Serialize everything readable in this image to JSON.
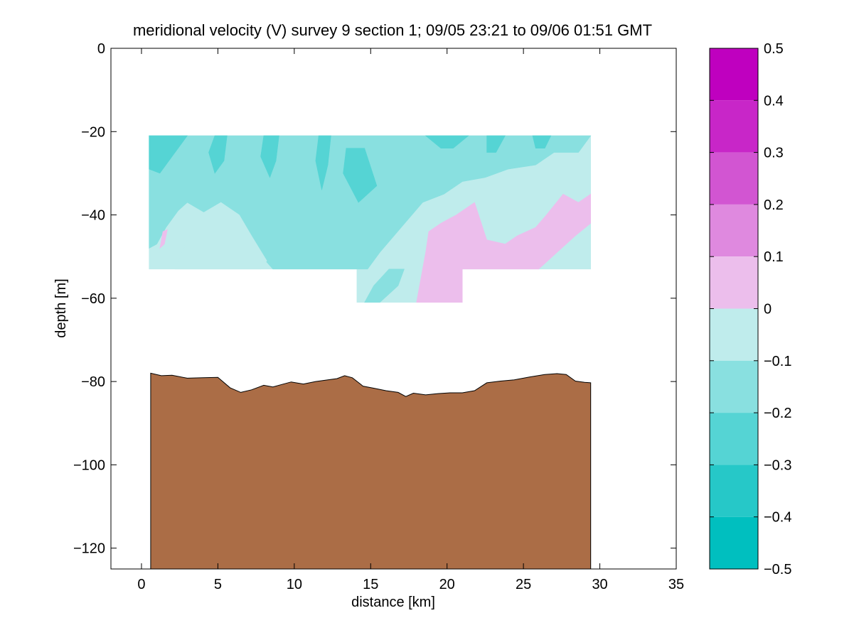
{
  "figure": {
    "title": "meridional velocity (V) survey 9 section 1; 09/05 23:21 to 09/06 01:51 GMT"
  },
  "chart_data": {
    "type": "contourf",
    "title": "meridional velocity (V) survey 9 section 1; 09/05 23:21 to 09/06 01:51 GMT",
    "xlabel": "distance [km]",
    "ylabel": "depth [m]",
    "xlim": [
      -2,
      35
    ],
    "ylim": [
      -125,
      0
    ],
    "xticks": [
      0,
      5,
      10,
      15,
      20,
      25,
      30,
      35
    ],
    "yticks": [
      0,
      -20,
      -40,
      -60,
      -80,
      -100,
      -120
    ],
    "grid": false,
    "colorbar": {
      "placement": "right",
      "ticks": [
        0.5,
        0.4,
        0.3,
        0.2,
        0.1,
        0,
        -0.1,
        -0.2,
        -0.3,
        -0.4,
        -0.5
      ],
      "tick_labels": [
        "0.5",
        "0.4",
        "0.3",
        "0.2",
        "0.1",
        "0",
        "−0.1",
        "−0.2",
        "−0.3",
        "−0.4",
        "−0.5"
      ],
      "levels": [
        {
          "from": 0.4,
          "to": 0.5,
          "color": "#BF00BF"
        },
        {
          "from": 0.3,
          "to": 0.4,
          "color": "#C826C8"
        },
        {
          "from": 0.2,
          "to": 0.3,
          "color": "#D255D2"
        },
        {
          "from": 0.1,
          "to": 0.2,
          "color": "#DF89DF"
        },
        {
          "from": 0.0,
          "to": 0.1,
          "color": "#ECBEEC"
        },
        {
          "from": -0.1,
          "to": 0.0,
          "color": "#BFECEC"
        },
        {
          "from": -0.2,
          "to": -0.1,
          "color": "#89E0E0"
        },
        {
          "from": -0.3,
          "to": -0.2,
          "color": "#55D4D4"
        },
        {
          "from": -0.4,
          "to": -0.3,
          "color": "#26C8C8"
        },
        {
          "from": -0.5,
          "to": -0.4,
          "color": "#00BFBF"
        }
      ]
    },
    "data_region": {
      "x_range": [
        0.5,
        29.4
      ],
      "depth_top": -21,
      "depth_bottom_main": -53,
      "depth_bottom_extension": -61,
      "extension_x_range": [
        14.1,
        21.0
      ]
    },
    "velocity_patches": [
      {
        "value_band": [
          -0.1,
          0.0
        ],
        "color": "#BFECEC",
        "polygon": [
          [
            0.5,
            -53
          ],
          [
            14.1,
            -53
          ],
          [
            14.1,
            -61
          ],
          [
            21.0,
            -61
          ],
          [
            21.0,
            -53
          ],
          [
            29.4,
            -53
          ],
          [
            29.4,
            -21
          ],
          [
            0.5,
            -21
          ]
        ]
      },
      {
        "value_band": [
          -0.2,
          -0.1
        ],
        "color": "#89E0E0",
        "polygon": [
          [
            0.5,
            -21
          ],
          [
            29.4,
            -21
          ],
          [
            28.6,
            -25
          ],
          [
            27.0,
            -25
          ],
          [
            25.8,
            -28
          ],
          [
            24.0,
            -29
          ],
          [
            22.5,
            -31
          ],
          [
            21.0,
            -32
          ],
          [
            19.8,
            -35
          ],
          [
            18.4,
            -37
          ],
          [
            17.0,
            -43
          ],
          [
            15.6,
            -49
          ],
          [
            14.8,
            -53
          ],
          [
            8.6,
            -53
          ],
          [
            7.4,
            -48
          ],
          [
            5.8,
            -44
          ],
          [
            4.4,
            -40
          ],
          [
            3.0,
            -37
          ],
          [
            2.4,
            -39
          ],
          [
            1.6,
            -43
          ],
          [
            1.0,
            -47
          ],
          [
            0.5,
            -48
          ]
        ]
      },
      {
        "value_band": [
          -0.1,
          0.0
        ],
        "color": "#BFECEC",
        "polygon": [
          [
            3.8,
            -40
          ],
          [
            5.2,
            -37
          ],
          [
            6.4,
            -40
          ],
          [
            7.2,
            -45
          ],
          [
            8.2,
            -51
          ],
          [
            7.8,
            -53
          ],
          [
            2.2,
            -53
          ],
          [
            3.0,
            -46
          ]
        ]
      },
      {
        "value_band": [
          -0.2,
          -0.1
        ],
        "color": "#89E0E0",
        "polygon": [
          [
            16.2,
            -53
          ],
          [
            17.2,
            -53
          ],
          [
            16.8,
            -57
          ],
          [
            15.6,
            -61
          ],
          [
            14.6,
            -61
          ],
          [
            15.2,
            -57
          ]
        ]
      },
      {
        "value_band": [
          -0.3,
          -0.2
        ],
        "color": "#55D4D4",
        "polygon": [
          [
            0.5,
            -21
          ],
          [
            3.0,
            -21
          ],
          [
            2.0,
            -26
          ],
          [
            1.2,
            -30
          ],
          [
            0.5,
            -29
          ]
        ]
      },
      {
        "value_band": [
          -0.3,
          -0.2
        ],
        "color": "#55D4D4",
        "polygon": [
          [
            4.8,
            -21
          ],
          [
            5.6,
            -21
          ],
          [
            5.4,
            -27
          ],
          [
            4.8,
            -30
          ],
          [
            4.4,
            -25
          ]
        ]
      },
      {
        "value_band": [
          -0.3,
          -0.2
        ],
        "color": "#55D4D4",
        "polygon": [
          [
            8.0,
            -21
          ],
          [
            9.0,
            -21
          ],
          [
            8.8,
            -27
          ],
          [
            8.4,
            -31
          ],
          [
            7.8,
            -26
          ]
        ]
      },
      {
        "value_band": [
          -0.3,
          -0.2
        ],
        "color": "#55D4D4",
        "polygon": [
          [
            11.6,
            -21
          ],
          [
            12.4,
            -21
          ],
          [
            12.2,
            -28
          ],
          [
            11.8,
            -34
          ],
          [
            11.4,
            -27
          ]
        ]
      },
      {
        "value_band": [
          -0.3,
          -0.2
        ],
        "color": "#55D4D4",
        "polygon": [
          [
            13.4,
            -24
          ],
          [
            14.6,
            -24
          ],
          [
            15.4,
            -33
          ],
          [
            14.2,
            -37
          ],
          [
            13.2,
            -30
          ]
        ]
      },
      {
        "value_band": [
          -0.3,
          -0.2
        ],
        "color": "#55D4D4",
        "polygon": [
          [
            18.6,
            -21
          ],
          [
            21.4,
            -21
          ],
          [
            20.4,
            -24
          ],
          [
            19.6,
            -24
          ]
        ]
      },
      {
        "value_band": [
          -0.3,
          -0.2
        ],
        "color": "#55D4D4",
        "polygon": [
          [
            22.6,
            -21
          ],
          [
            23.8,
            -21
          ],
          [
            23.2,
            -25
          ],
          [
            22.6,
            -25
          ]
        ]
      },
      {
        "value_band": [
          -0.3,
          -0.2
        ],
        "color": "#55D4D4",
        "polygon": [
          [
            25.6,
            -21
          ],
          [
            26.8,
            -21
          ],
          [
            26.4,
            -24
          ],
          [
            25.8,
            -24
          ]
        ]
      },
      {
        "value_band": [
          0.0,
          0.1
        ],
        "color": "#ECBEEC",
        "polygon": [
          [
            18.0,
            -61
          ],
          [
            21.0,
            -61
          ],
          [
            21.0,
            -53
          ],
          [
            26.0,
            -53
          ],
          [
            27.2,
            -49
          ],
          [
            28.4,
            -45
          ],
          [
            29.4,
            -42
          ],
          [
            29.4,
            -35
          ],
          [
            28.6,
            -37
          ],
          [
            27.6,
            -35
          ],
          [
            26.5,
            -40
          ],
          [
            25.8,
            -43
          ],
          [
            24.6,
            -45
          ],
          [
            23.8,
            -47
          ],
          [
            22.6,
            -46
          ],
          [
            21.8,
            -37
          ],
          [
            20.6,
            -40
          ],
          [
            19.6,
            -42
          ],
          [
            18.8,
            -44
          ],
          [
            18.6,
            -49
          ]
        ]
      },
      {
        "value_band": [
          0.0,
          0.1
        ],
        "color": "#ECBEEC",
        "polygon": [
          [
            1.4,
            -44
          ],
          [
            1.7,
            -43.5
          ],
          [
            1.5,
            -47
          ],
          [
            1.2,
            -48
          ]
        ]
      }
    ],
    "bathymetry": {
      "fill_color": "#AB6D46",
      "x": [
        0.6,
        1.3,
        2.0,
        3.0,
        4.0,
        5.0,
        5.8,
        6.5,
        7.2,
        8.0,
        8.6,
        9.2,
        9.8,
        10.6,
        11.4,
        12.2,
        12.8,
        13.3,
        13.8,
        14.5,
        15.2,
        16.0,
        16.8,
        17.3,
        17.8,
        18.6,
        19.4,
        20.2,
        21.0,
        21.8,
        22.6,
        23.5,
        24.4,
        25.4,
        26.4,
        27.2,
        27.8,
        28.4,
        29.0,
        29.4
      ],
      "depth": [
        -78.0,
        -78.6,
        -78.5,
        -79.2,
        -79.1,
        -79.0,
        -81.5,
        -82.6,
        -82.0,
        -80.9,
        -81.3,
        -80.7,
        -80.1,
        -80.6,
        -80.0,
        -79.6,
        -79.3,
        -78.6,
        -79.1,
        -81.1,
        -81.6,
        -82.2,
        -82.6,
        -83.6,
        -82.8,
        -83.2,
        -82.9,
        -82.7,
        -82.7,
        -82.2,
        -80.3,
        -79.9,
        -79.6,
        -78.9,
        -78.3,
        -78.1,
        -78.3,
        -79.9,
        -80.2,
        -80.3
      ]
    }
  }
}
